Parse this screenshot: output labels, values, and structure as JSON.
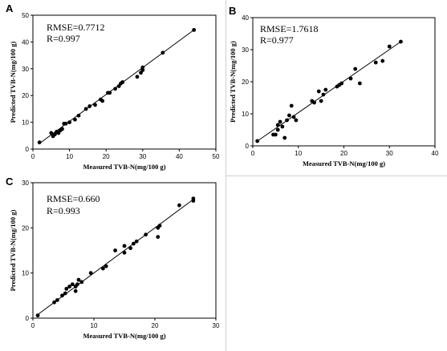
{
  "chart_data": [
    {
      "type": "scatter",
      "panel_label": "A",
      "stats": {
        "rmse": "RMSE=0.7712",
        "r": "R=0.997"
      },
      "xlabel": "Measured TVB-N(mg/100 g)",
      "ylabel": "Predicted TVB-N(mg/100 g)",
      "xlim": [
        0,
        50
      ],
      "ylim": [
        0,
        50
      ],
      "xticks": [
        0,
        10,
        20,
        30,
        40,
        50
      ],
      "yticks": [
        0,
        10,
        20,
        30,
        40,
        50
      ],
      "fit_line": {
        "x": [
          1.5,
          44
        ],
        "y": [
          1.8,
          44.5
        ]
      },
      "series": [
        {
          "x": [
            1.8,
            5.0,
            5.5,
            6.0,
            6.5,
            7.0,
            7.5,
            8.0,
            8.5,
            9.0,
            10.0,
            11.5,
            12.5,
            14.5,
            15.5,
            17.0,
            18.5,
            19.0,
            20.5,
            21.0,
            22.5,
            23.5,
            24.0,
            24.5,
            28.5,
            29.5,
            30.0,
            30.0,
            35.5,
            44.0
          ],
          "y": [
            2.5,
            6.0,
            4.8,
            5.5,
            6.5,
            6.0,
            7.0,
            7.5,
            9.5,
            9.5,
            10.0,
            11.0,
            12.5,
            15.0,
            16.0,
            16.5,
            18.5,
            18.0,
            21.0,
            21.0,
            22.5,
            23.5,
            24.5,
            25.0,
            27.0,
            28.5,
            29.5,
            30.5,
            36.0,
            44.5
          ]
        }
      ]
    },
    {
      "type": "scatter",
      "panel_label": "B",
      "stats": {
        "rmse": "RMSE=1.7618",
        "r": "R=0.977"
      },
      "xlabel": "Measured TVB-N(mg/100 g)",
      "ylabel": "Predicted TVB-N(mg/100 g)",
      "xlim": [
        0,
        40
      ],
      "ylim": [
        0,
        40
      ],
      "xticks": [
        0,
        10,
        20,
        30,
        40
      ],
      "yticks": [
        0,
        10,
        20,
        30,
        40
      ],
      "fit_line": {
        "x": [
          1,
          32.5
        ],
        "y": [
          1.5,
          32.5
        ]
      },
      "series": [
        {
          "x": [
            1.0,
            4.5,
            5.0,
            5.5,
            5.5,
            6.0,
            6.5,
            7.0,
            7.5,
            8.0,
            8.5,
            9.0,
            9.5,
            13.0,
            13.5,
            14.5,
            15.0,
            15.5,
            16.0,
            18.5,
            19.0,
            19.5,
            21.5,
            22.5,
            23.5,
            27.0,
            28.5,
            30.0,
            32.5
          ],
          "y": [
            1.5,
            3.5,
            3.5,
            5.0,
            6.5,
            7.5,
            6.0,
            2.5,
            8.0,
            9.5,
            12.5,
            9.0,
            8.0,
            14.0,
            13.5,
            17.0,
            14.0,
            16.0,
            17.5,
            18.5,
            19.0,
            19.5,
            21.0,
            24.0,
            19.5,
            26.0,
            26.5,
            31.0,
            32.5
          ]
        }
      ]
    },
    {
      "type": "scatter",
      "panel_label": "C",
      "stats": {
        "rmse": "RMSE=0.660",
        "r": "R=0.993"
      },
      "xlabel": "Measured TVB-N(mg/100 g)",
      "ylabel": "Predicted TVB-N(mg/100 g)",
      "xlim": [
        0,
        30
      ],
      "ylim": [
        0,
        30
      ],
      "xticks": [
        0,
        10,
        20,
        30
      ],
      "yticks": [
        0,
        10,
        20,
        30
      ],
      "fit_line": {
        "x": [
          0.8,
          26.3
        ],
        "y": [
          0.8,
          26.3
        ]
      },
      "series": [
        {
          "x": [
            0.8,
            3.5,
            4.0,
            4.8,
            5.3,
            5.5,
            6.0,
            6.5,
            7.0,
            7.0,
            7.3,
            7.5,
            8.0,
            9.5,
            11.5,
            12.0,
            13.5,
            15.0,
            15.0,
            16.0,
            16.5,
            17.0,
            18.5,
            20.5,
            20.5,
            20.8,
            24.0,
            26.3,
            26.3
          ],
          "y": [
            0.6,
            3.5,
            4.0,
            5.0,
            5.5,
            6.5,
            7.0,
            7.5,
            7.0,
            6.0,
            7.5,
            8.5,
            8.0,
            10.0,
            11.0,
            11.5,
            15.0,
            14.5,
            16.0,
            15.5,
            16.5,
            17.0,
            18.5,
            18.0,
            20.0,
            20.5,
            25.0,
            26.0,
            26.5
          ]
        }
      ]
    }
  ]
}
